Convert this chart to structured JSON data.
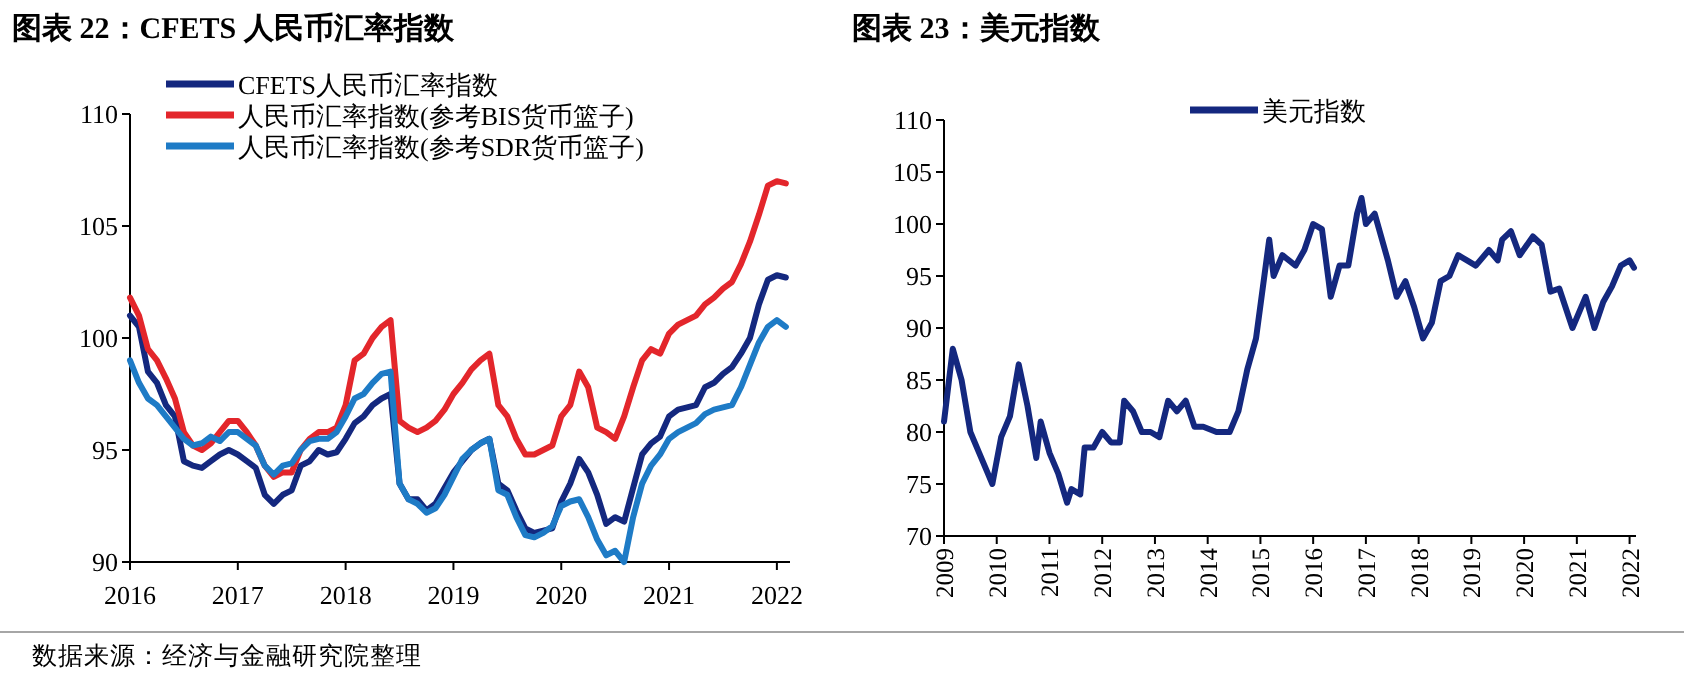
{
  "chart_data": [
    {
      "type": "line",
      "title": "图表 22：CFETS 人民币汇率指数",
      "legend": "top left",
      "grid": false,
      "xlim": [
        "2016-01-01",
        "2022-02-15"
      ],
      "xticks": [
        "2016",
        "2017",
        "2018",
        "2019",
        "2020",
        "2021",
        "2022"
      ],
      "ylim": [
        90,
        110
      ],
      "yticks": [
        90,
        95,
        100,
        105,
        110
      ],
      "annotations": [
        "数据来源：经济与金融研究院整理"
      ],
      "x": [
        "2016-01",
        "2016-02",
        "2016-03",
        "2016-04",
        "2016-05",
        "2016-06",
        "2016-07",
        "2016-08",
        "2016-09",
        "2016-10",
        "2016-11",
        "2016-12",
        "2017-01",
        "2017-02",
        "2017-03",
        "2017-04",
        "2017-05",
        "2017-06",
        "2017-07",
        "2017-08",
        "2017-09",
        "2017-10",
        "2017-11",
        "2017-12",
        "2018-01",
        "2018-02",
        "2018-03",
        "2018-04",
        "2018-05",
        "2018-06",
        "2018-07",
        "2018-08",
        "2018-09",
        "2018-10",
        "2018-11",
        "2018-12",
        "2019-01",
        "2019-02",
        "2019-03",
        "2019-04",
        "2019-05",
        "2019-06",
        "2019-07",
        "2019-08",
        "2019-09",
        "2019-10",
        "2019-11",
        "2019-12",
        "2020-01",
        "2020-02",
        "2020-03",
        "2020-04",
        "2020-05",
        "2020-06",
        "2020-07",
        "2020-08",
        "2020-09",
        "2020-10",
        "2020-11",
        "2020-12",
        "2021-01",
        "2021-02",
        "2021-03",
        "2021-04",
        "2021-05",
        "2021-06",
        "2021-07",
        "2021-08",
        "2021-09",
        "2021-10",
        "2021-11",
        "2021-12",
        "2022-01",
        "2022-02"
      ],
      "series": [
        {
          "name": "CFETS人民币汇率指数",
          "color": "#14287f",
          "values": [
            101,
            100.5,
            98.5,
            98.0,
            97,
            96.5,
            94.5,
            94.3,
            94.2,
            94.5,
            94.8,
            95.0,
            94.8,
            94.5,
            94.2,
            93.0,
            92.6,
            93.0,
            93.2,
            94.3,
            94.5,
            95.0,
            94.8,
            94.9,
            95.5,
            96.2,
            96.5,
            97.0,
            97.3,
            97.5,
            93.5,
            92.8,
            92.8,
            92.3,
            92.6,
            93.3,
            94.0,
            94.5,
            95.0,
            95.3,
            95.5,
            93.5,
            93.2,
            92.3,
            91.5,
            91.3,
            91.4,
            91.5,
            92.7,
            93.5,
            94.6,
            94.0,
            93.0,
            91.7,
            92.0,
            91.8,
            93.3,
            94.8,
            95.3,
            95.6,
            96.5,
            96.8,
            96.9,
            97.0,
            97.8,
            98.0,
            98.4,
            98.7,
            99.3,
            100.0,
            101.5,
            102.6,
            102.8,
            102.7
          ]
        },
        {
          "name": "人民币汇率指数(参考BIS货币篮子)",
          "color": "#e3262b",
          "values": [
            101.8,
            101.0,
            99.5,
            99.0,
            98.2,
            97.3,
            95.8,
            95.2,
            95.0,
            95.3,
            95.8,
            96.3,
            96.3,
            95.8,
            95.2,
            94.3,
            93.8,
            94.0,
            94.0,
            95.0,
            95.5,
            95.8,
            95.8,
            96.0,
            97.0,
            99.0,
            99.3,
            100.0,
            100.5,
            100.8,
            96.3,
            96.0,
            95.8,
            96.0,
            96.3,
            96.8,
            97.5,
            98.0,
            98.6,
            99.0,
            99.3,
            97.0,
            96.5,
            95.5,
            94.8,
            94.8,
            95.0,
            95.2,
            96.5,
            97.0,
            98.5,
            97.8,
            96.0,
            95.8,
            95.5,
            96.5,
            97.8,
            99.0,
            99.5,
            99.3,
            100.2,
            100.6,
            100.8,
            101.0,
            101.5,
            101.8,
            102.2,
            102.5,
            103.3,
            104.3,
            105.5,
            106.8,
            107.0,
            106.9
          ]
        },
        {
          "name": "人民币汇率指数(参考SDR货币篮子)",
          "color": "#1e7bc6",
          "values": [
            99.0,
            98.0,
            97.3,
            97.0,
            96.5,
            96.0,
            95.5,
            95.2,
            95.3,
            95.6,
            95.4,
            95.8,
            95.8,
            95.5,
            95.2,
            94.3,
            93.9,
            94.3,
            94.4,
            95.0,
            95.4,
            95.5,
            95.5,
            95.8,
            96.5,
            97.3,
            97.5,
            98.0,
            98.4,
            98.5,
            93.5,
            92.8,
            92.6,
            92.2,
            92.4,
            93.0,
            93.8,
            94.6,
            95.0,
            95.3,
            95.5,
            93.2,
            93.0,
            92.0,
            91.2,
            91.1,
            91.3,
            91.6,
            92.5,
            92.7,
            92.8,
            92.0,
            91.0,
            90.3,
            90.5,
            90.0,
            92.0,
            93.5,
            94.3,
            94.8,
            95.5,
            95.8,
            96.0,
            96.2,
            96.6,
            96.8,
            96.9,
            97.0,
            97.8,
            98.8,
            99.8,
            100.5,
            100.8,
            100.5
          ]
        }
      ]
    },
    {
      "type": "line",
      "title": "图表 23：美元指数",
      "legend": "top",
      "grid": false,
      "xlim": [
        "2009-01-01",
        "2022-02-15"
      ],
      "xticks": [
        "2009",
        "2010",
        "2011",
        "2012",
        "2013",
        "2014",
        "2015",
        "2016",
        "2017",
        "2018",
        "2019",
        "2020",
        "2021",
        "2022"
      ],
      "ylim": [
        70,
        110
      ],
      "yticks": [
        70,
        75,
        80,
        85,
        90,
        95,
        100,
        105,
        110
      ],
      "x": [
        "2009-01",
        "2009-03",
        "2009-05",
        "2009-07",
        "2009-09",
        "2009-11",
        "2009-12",
        "2010-02",
        "2010-04",
        "2010-06",
        "2010-08",
        "2010-10",
        "2010-11",
        "2011-01",
        "2011-03",
        "2011-05",
        "2011-06",
        "2011-08",
        "2011-09",
        "2011-11",
        "2012-01",
        "2012-03",
        "2012-05",
        "2012-06",
        "2012-08",
        "2012-10",
        "2012-12",
        "2013-02",
        "2013-04",
        "2013-06",
        "2013-08",
        "2013-10",
        "2013-12",
        "2014-03",
        "2014-06",
        "2014-08",
        "2014-10",
        "2014-12",
        "2015-03",
        "2015-04",
        "2015-06",
        "2015-09",
        "2015-11",
        "2016-01",
        "2016-03",
        "2016-05",
        "2016-07",
        "2016-09",
        "2016-11",
        "2016-12",
        "2017-01",
        "2017-03",
        "2017-06",
        "2017-08",
        "2017-10",
        "2017-12",
        "2018-02",
        "2018-04",
        "2018-06",
        "2018-08",
        "2018-10",
        "2018-12",
        "2019-02",
        "2019-05",
        "2019-07",
        "2019-08",
        "2019-10",
        "2019-12",
        "2020-03",
        "2020-05",
        "2020-07",
        "2020-09",
        "2020-12",
        "2021-03",
        "2021-05",
        "2021-07",
        "2021-09",
        "2021-11",
        "2022-01",
        "2022-02"
      ],
      "series": [
        {
          "name": "美元指数",
          "color": "#14287f",
          "values": [
            81,
            88,
            85,
            80,
            78,
            76,
            75,
            79.5,
            81.5,
            86.5,
            82.5,
            77.5,
            81,
            78,
            76,
            73.2,
            74.5,
            74,
            78.5,
            78.5,
            80,
            79,
            79,
            83,
            82,
            80,
            80,
            79.5,
            83,
            82,
            83,
            80.5,
            80.5,
            80,
            80,
            82,
            86,
            89,
            98.5,
            95,
            97,
            96,
            97.5,
            100,
            99.5,
            93,
            96,
            96,
            101,
            102.5,
            100,
            101,
            96.5,
            93,
            94.5,
            92,
            89,
            90.5,
            94.5,
            95,
            97,
            96.5,
            96,
            97.5,
            96.5,
            98.5,
            99.3,
            97,
            98.8,
            98,
            93.5,
            93.8,
            90,
            93,
            90,
            92.5,
            94,
            96,
            96.5,
            95.8
          ]
        }
      ]
    }
  ]
}
